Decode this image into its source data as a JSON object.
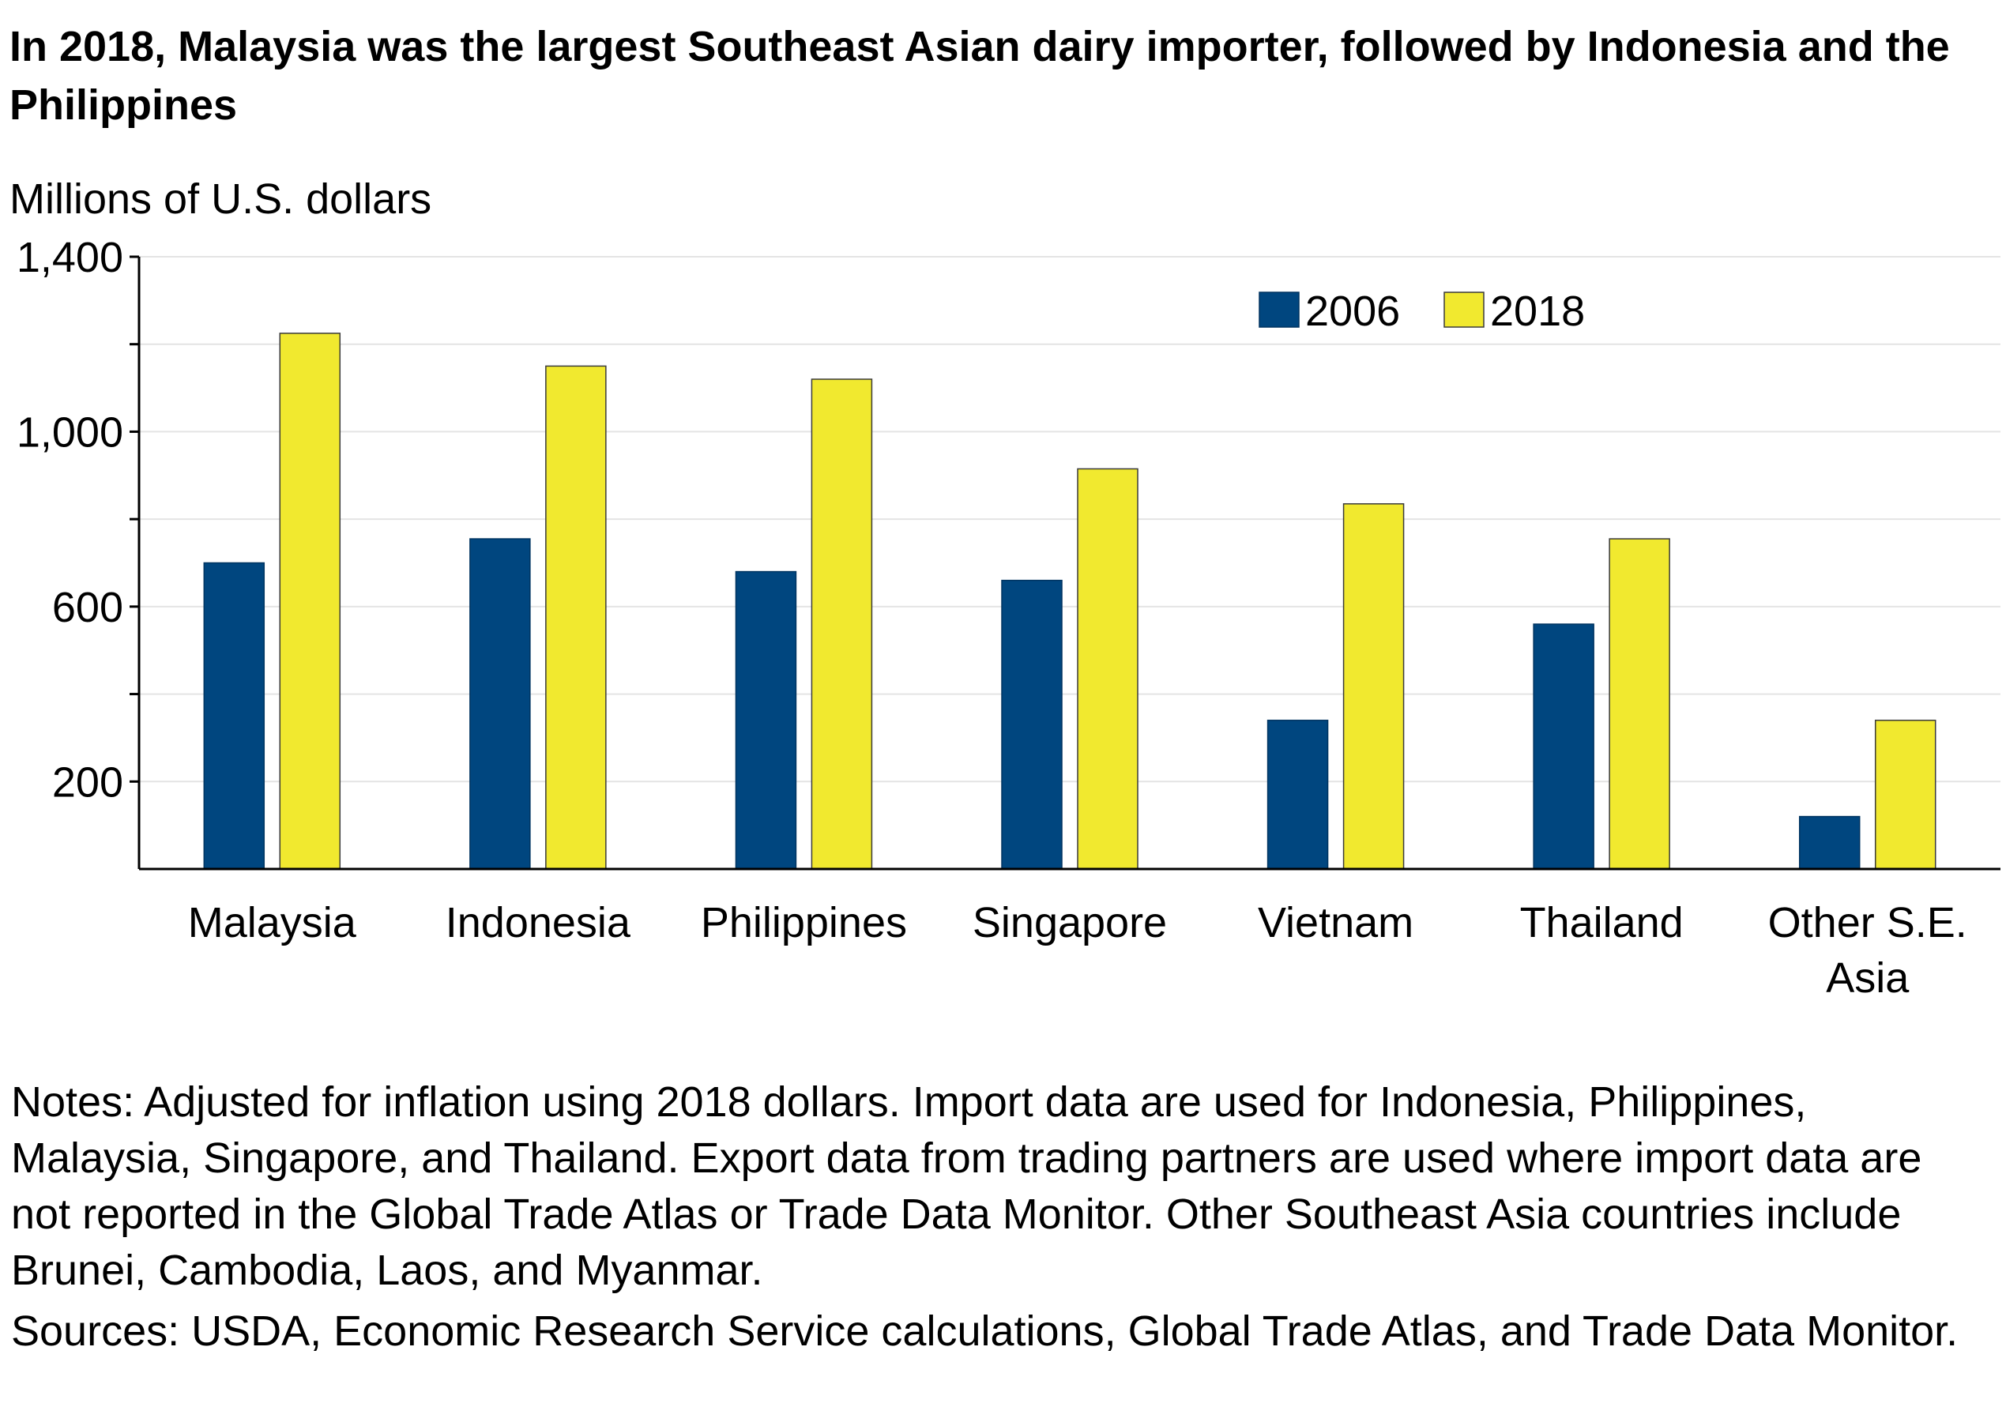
{
  "title": "In 2018, Malaysia was the largest Southeast Asian dairy importer, followed by Indonesia and the Philippines",
  "notes": "Notes: Adjusted for inflation using 2018 dollars. Import data are used for Indonesia, Philippines, Malaysia, Singapore, and Thailand.  Export data from trading partners are used where import data are not reported in the Global Trade Atlas or Trade Data Monitor. Other Southeast Asia countries include Brunei, Cambodia, Laos, and Myanmar.",
  "sources": "Sources: USDA, Economic Research Service calculations, Global Trade Atlas, and Trade Data Monitor.",
  "colors": {
    "2006": "#00467f",
    "2018": "#f1e92f"
  },
  "chart_data": {
    "type": "bar",
    "title": "In 2018, Malaysia was the largest Southeast Asian dairy importer, followed by Indonesia and the Philippines",
    "ylabel": "Millions of U.S. dollars",
    "xlabel": "",
    "ylim": [
      0,
      1400
    ],
    "y_ticks": [
      200,
      600,
      1000,
      1400
    ],
    "y_tick_labels": [
      "200",
      "600",
      "1,000",
      "1,400"
    ],
    "y_minor_ticks": [
      400,
      800,
      1200
    ],
    "grid": "horizontal",
    "legend": "top-right",
    "categories": [
      [
        "Malaysia"
      ],
      [
        "Indonesia"
      ],
      [
        "Philippines"
      ],
      [
        "Singapore"
      ],
      [
        "Vietnam"
      ],
      [
        "Thailand"
      ],
      [
        "Other S.E.",
        "Asia"
      ]
    ],
    "series": [
      {
        "name": "2006",
        "values": [
          700,
          755,
          680,
          660,
          340,
          560,
          120
        ]
      },
      {
        "name": "2018",
        "values": [
          1225,
          1150,
          1120,
          915,
          835,
          755,
          340
        ]
      }
    ]
  }
}
